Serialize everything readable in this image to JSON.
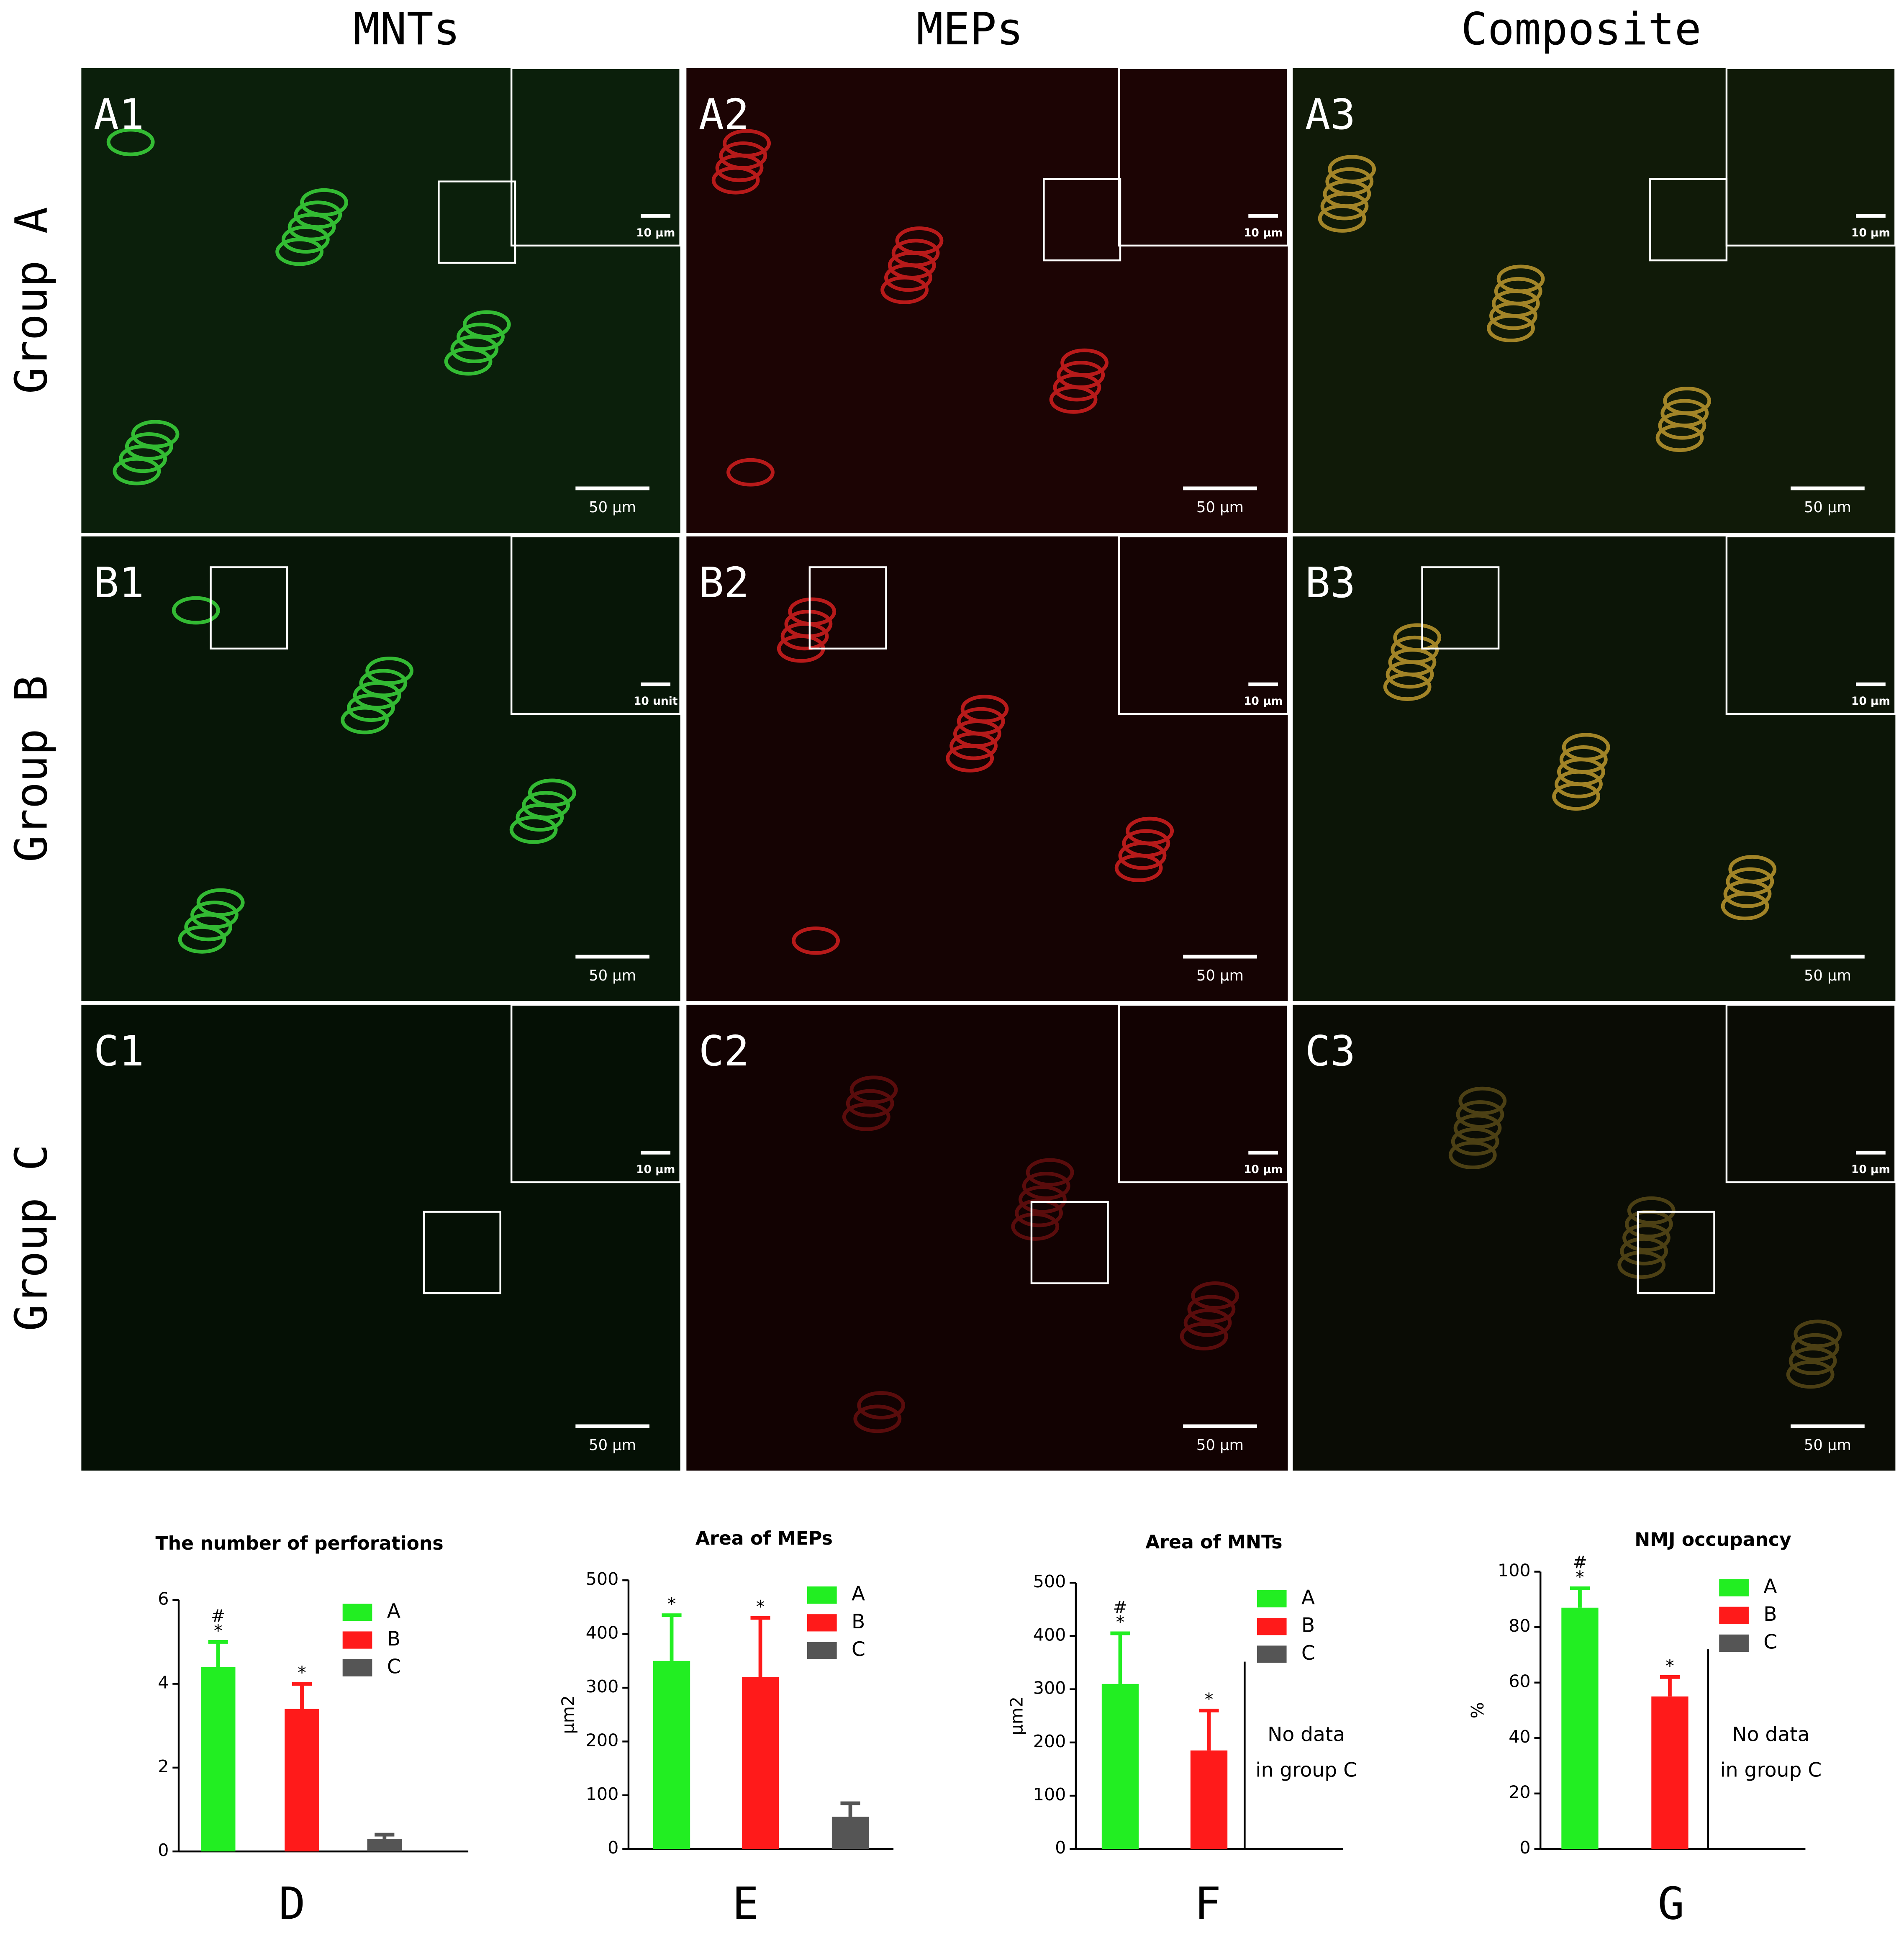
{
  "headers": [
    "MNTs",
    "MEPs",
    "Composite"
  ],
  "rows": [
    {
      "label": "Group A",
      "panels": [
        {
          "label": "A1",
          "scale": "50 μm",
          "inset_scale": "10 μm"
        },
        {
          "label": "A2",
          "scale": "50 μm",
          "inset_scale": "10 μm"
        },
        {
          "label": "A3",
          "scale": "50 μm",
          "inset_scale": "10 μm"
        }
      ]
    },
    {
      "label": "Group B",
      "panels": [
        {
          "label": "B1",
          "scale": "50 μm",
          "inset_scale": "10 unit"
        },
        {
          "label": "B2",
          "scale": "50 μm",
          "inset_scale": "10 μm"
        },
        {
          "label": "B3",
          "scale": "50 μm",
          "inset_scale": "10 μm"
        }
      ]
    },
    {
      "label": "Group C",
      "panels": [
        {
          "label": "C1",
          "scale": "50 μm",
          "inset_scale": "10 μm"
        },
        {
          "label": "C2",
          "scale": "50 μm",
          "inset_scale": "10 μm"
        },
        {
          "label": "C3",
          "scale": "50 μm",
          "inset_scale": "10 μm"
        }
      ]
    }
  ],
  "chart_data": [
    {
      "type": "bar",
      "title": "The number of perforations",
      "letter": "D",
      "categories": [
        "A",
        "B",
        "C"
      ],
      "values": [
        4.4,
        3.4,
        0.3
      ],
      "errors": [
        0.6,
        0.6,
        0.1
      ],
      "colors": [
        "#22ee22",
        "#ff1a1a",
        "#555555"
      ],
      "annotations": [
        {
          "category": 0,
          "texts": [
            "#",
            "*"
          ]
        },
        {
          "category": 1,
          "texts": [
            "*"
          ]
        }
      ],
      "ylim": [
        0,
        6
      ],
      "yticks": [
        0,
        2,
        4,
        6
      ],
      "legend": "upper right"
    },
    {
      "type": "bar",
      "title": "Area of MEPs",
      "letter": "E",
      "ylabel": "μm2",
      "categories": [
        "A",
        "B",
        "C"
      ],
      "values": [
        350,
        320,
        60
      ],
      "errors": [
        85,
        110,
        25
      ],
      "colors": [
        "#22ee22",
        "#ff1a1a",
        "#555555"
      ],
      "annotations": [
        {
          "category": 0,
          "texts": [
            "*"
          ]
        },
        {
          "category": 1,
          "texts": [
            "*"
          ]
        }
      ],
      "ylim": [
        0,
        500
      ],
      "yticks": [
        0,
        100,
        200,
        300,
        400,
        500
      ],
      "legend": "upper right"
    },
    {
      "type": "bar",
      "title": "Area of MNTs",
      "letter": "F",
      "ylabel": "μm2",
      "categories": [
        "A",
        "B",
        "C"
      ],
      "values": [
        310,
        185,
        null
      ],
      "errors": [
        95,
        75,
        null
      ],
      "colors": [
        "#22ee22",
        "#ff1a1a",
        "#555555"
      ],
      "annotations": [
        {
          "category": 0,
          "texts": [
            "#",
            "*"
          ]
        },
        {
          "category": 1,
          "texts": [
            "*"
          ]
        }
      ],
      "note": [
        "No data",
        "in group C"
      ],
      "ylim": [
        0,
        500
      ],
      "yticks": [
        0,
        100,
        200,
        300,
        400,
        500
      ],
      "legend": "upper right"
    },
    {
      "type": "bar",
      "title": "NMJ occupancy",
      "letter": "G",
      "ylabel": "%",
      "categories": [
        "A",
        "B",
        "C"
      ],
      "values": [
        87,
        55,
        null
      ],
      "errors": [
        7,
        7,
        null
      ],
      "colors": [
        "#22ee22",
        "#ff1a1a",
        "#555555"
      ],
      "annotations": [
        {
          "category": 0,
          "texts": [
            "#",
            "*"
          ]
        },
        {
          "category": 1,
          "texts": [
            "*"
          ]
        }
      ],
      "note": [
        "No data",
        "in group C"
      ],
      "ylim": [
        0,
        100
      ],
      "yticks": [
        0,
        20,
        40,
        60,
        80,
        100
      ],
      "legend": "upper right"
    }
  ]
}
